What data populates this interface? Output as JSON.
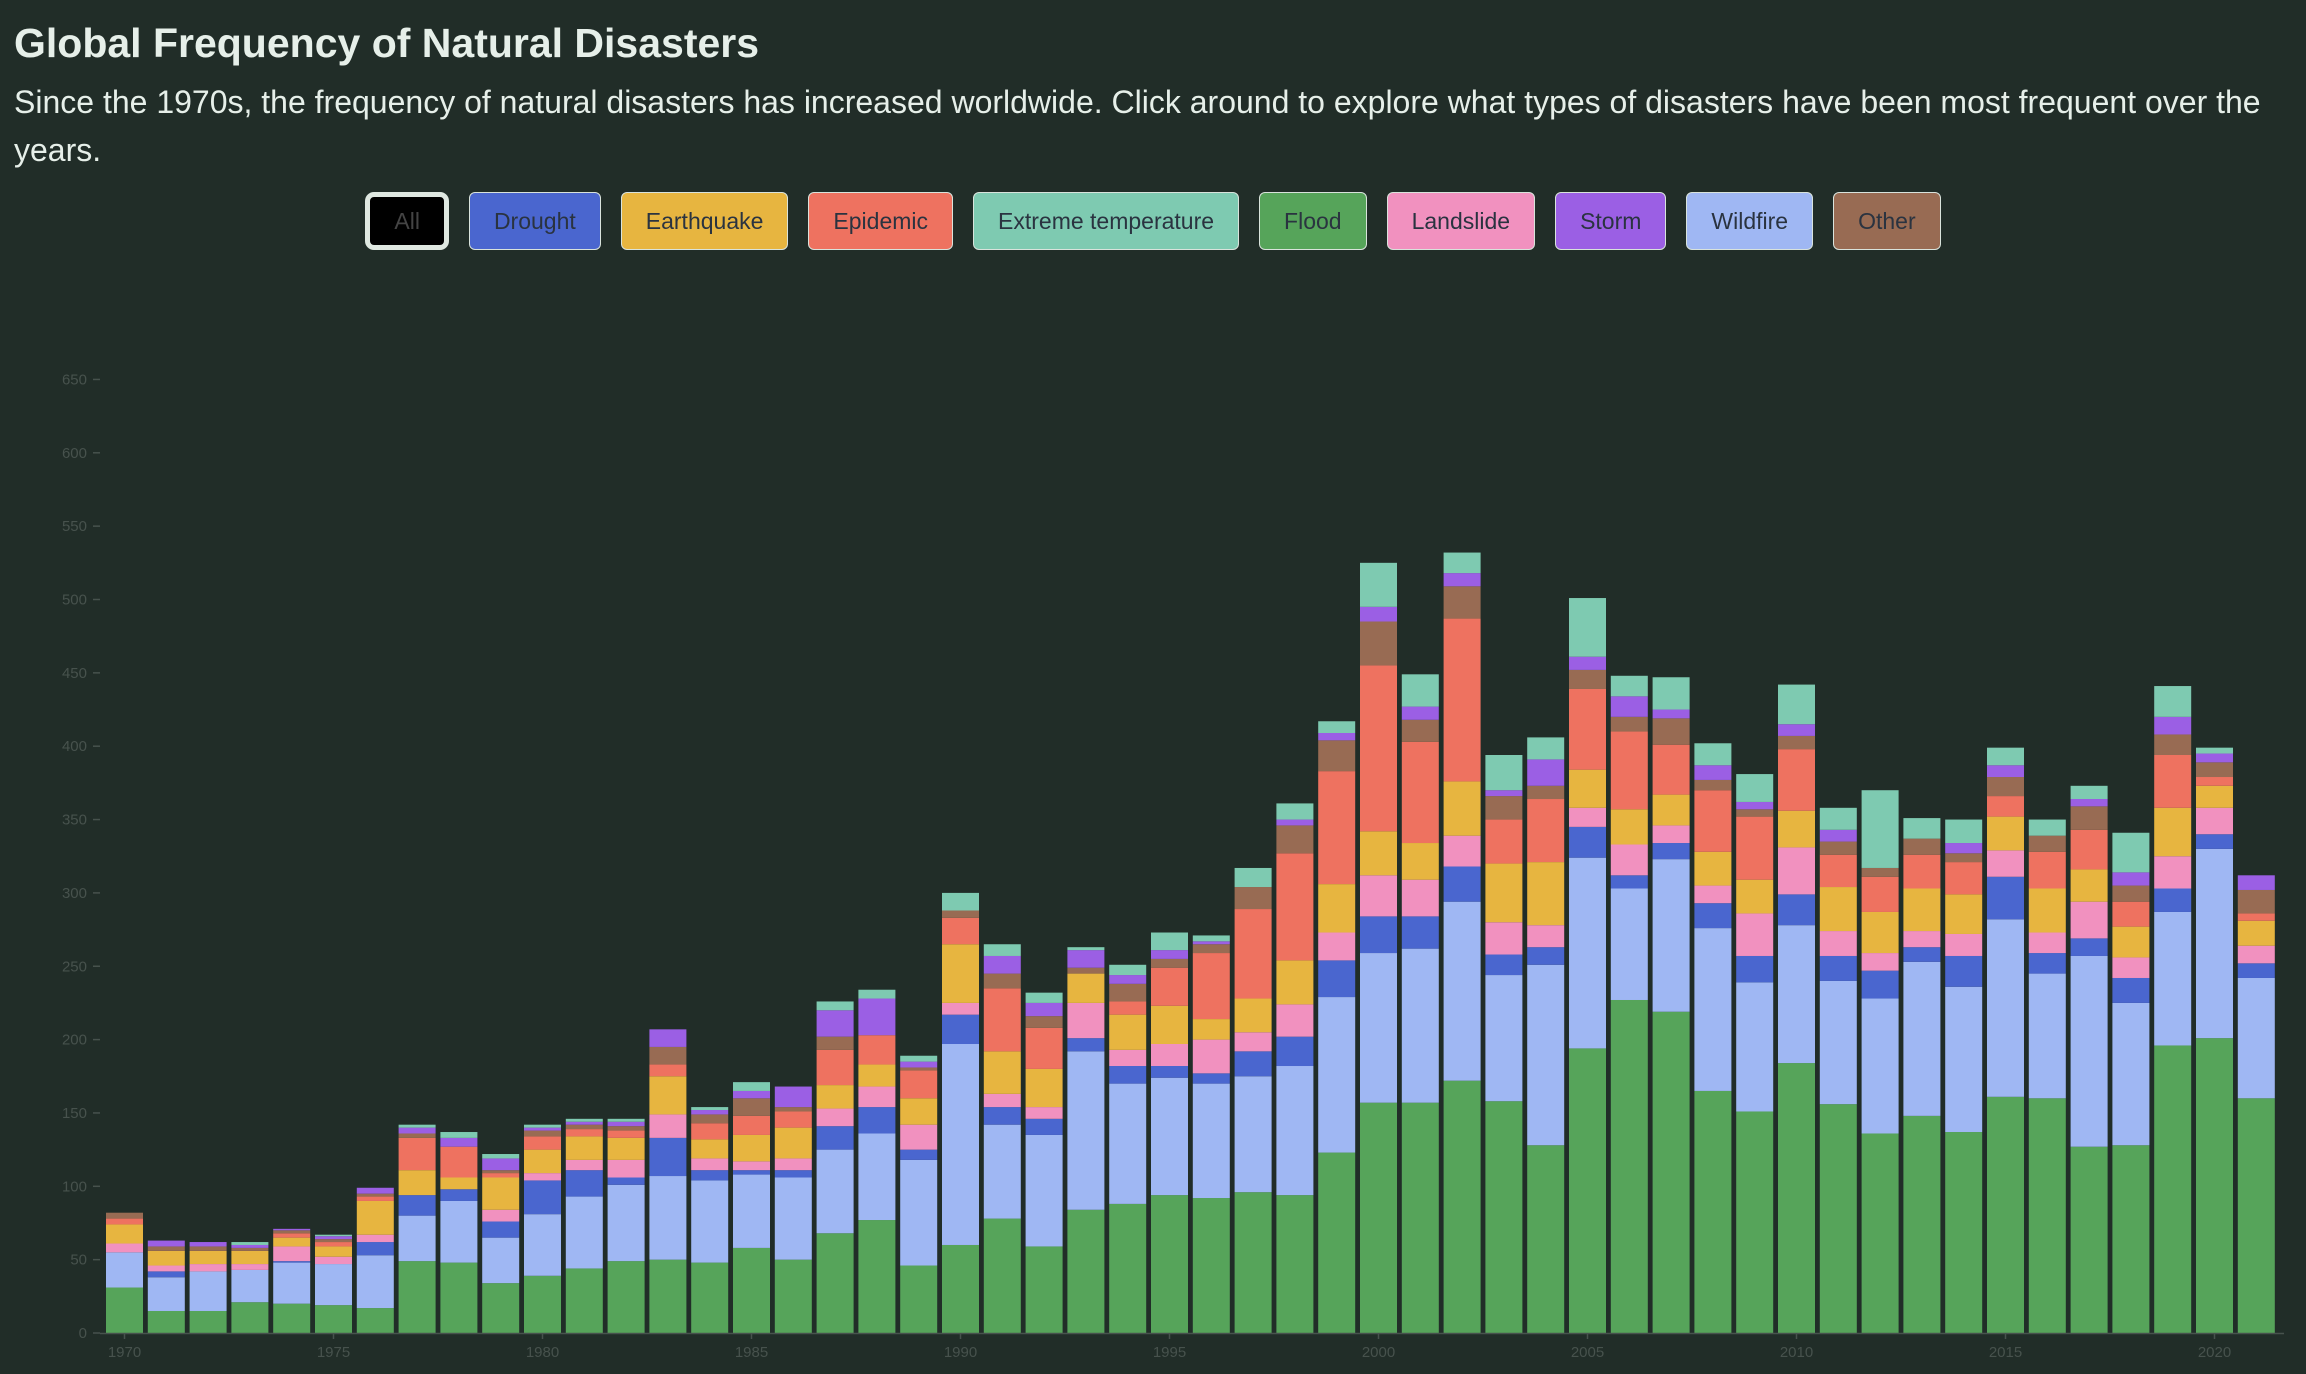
{
  "title": "Global Frequency of Natural Disasters",
  "subtitle": "Since the 1970s, the frequency of natural disasters has increased worldwide. Click around to explore what types of disasters have been most frequent over the years.",
  "filters": [
    {
      "label": "All",
      "color": "#000000",
      "active": true
    },
    {
      "label": "Drought",
      "color": "#4a66cf"
    },
    {
      "label": "Earthquake",
      "color": "#e7b540"
    },
    {
      "label": "Epidemic",
      "color": "#ee7260"
    },
    {
      "label": "Extreme temperature",
      "color": "#7ecab1"
    },
    {
      "label": "Flood",
      "color": "#56a45a"
    },
    {
      "label": "Landslide",
      "color": "#f191bf"
    },
    {
      "label": "Storm",
      "color": "#9b5fe4"
    },
    {
      "label": "Wildfire",
      "color": "#9fb7f3"
    },
    {
      "label": "Other",
      "color": "#986b53"
    }
  ],
  "chart_data": {
    "type": "bar",
    "stacked": true,
    "grid": false,
    "ylim": [
      0,
      650
    ],
    "yticks": [
      0,
      50,
      100,
      150,
      200,
      250,
      300,
      350,
      400,
      450,
      500,
      550,
      600,
      650
    ],
    "xticks": [
      1970,
      1975,
      1980,
      1985,
      1990,
      1995,
      2000,
      2005,
      2010,
      2015,
      2020
    ],
    "categories": [
      1970,
      1971,
      1972,
      1973,
      1974,
      1975,
      1976,
      1977,
      1978,
      1979,
      1980,
      1981,
      1982,
      1983,
      1984,
      1985,
      1986,
      1987,
      1988,
      1989,
      1990,
      1991,
      1992,
      1993,
      1994,
      1995,
      1996,
      1997,
      1998,
      1999,
      2000,
      2001,
      2002,
      2003,
      2004,
      2005,
      2006,
      2007,
      2008,
      2009,
      2010,
      2011,
      2012,
      2013,
      2014,
      2015,
      2016,
      2017,
      2018,
      2019,
      2020,
      2021
    ],
    "series": [
      {
        "name": "Flood",
        "color": "#56a45a",
        "values": [
          31,
          15,
          15,
          21,
          20,
          19,
          17,
          49,
          48,
          34,
          39,
          44,
          49,
          50,
          48,
          58,
          50,
          68,
          77,
          46,
          60,
          78,
          59,
          84,
          88,
          94,
          92,
          96,
          94,
          123,
          157,
          157,
          172,
          158,
          128,
          194,
          227,
          219,
          165,
          151,
          184,
          156,
          136,
          148,
          137,
          161,
          160,
          127,
          128,
          196,
          201,
          160
        ]
      },
      {
        "name": "Wildfire",
        "color": "#9fb7f3",
        "values": [
          24,
          23,
          27,
          22,
          28,
          28,
          36,
          31,
          42,
          31,
          42,
          49,
          52,
          57,
          56,
          50,
          56,
          57,
          59,
          72,
          137,
          64,
          76,
          108,
          82,
          80,
          78,
          79,
          88,
          106,
          102,
          105,
          122,
          86,
          123,
          130,
          76,
          104,
          111,
          88,
          94,
          84,
          92,
          105,
          99,
          121,
          85,
          130,
          97,
          91,
          129,
          82
        ]
      },
      {
        "name": "Drought",
        "color": "#4a66cf",
        "values": [
          0,
          4,
          0,
          0,
          1,
          0,
          9,
          14,
          8,
          11,
          23,
          18,
          5,
          26,
          7,
          3,
          5,
          16,
          18,
          7,
          20,
          12,
          11,
          9,
          12,
          8,
          7,
          17,
          20,
          25,
          25,
          22,
          24,
          14,
          12,
          21,
          9,
          11,
          17,
          18,
          21,
          17,
          19,
          10,
          21,
          29,
          14,
          12,
          17,
          16,
          10,
          10
        ]
      },
      {
        "name": "Landslide",
        "color": "#f191bf",
        "values": [
          6,
          4,
          5,
          4,
          10,
          5,
          5,
          0,
          0,
          8,
          5,
          7,
          12,
          16,
          8,
          6,
          8,
          12,
          14,
          17,
          8,
          9,
          8,
          24,
          11,
          15,
          23,
          13,
          22,
          19,
          28,
          25,
          21,
          22,
          15,
          13,
          21,
          12,
          12,
          29,
          32,
          17,
          12,
          11,
          15,
          18,
          14,
          25,
          14,
          22,
          18,
          12
        ]
      },
      {
        "name": "Earthquake",
        "color": "#e7b540",
        "values": [
          13,
          10,
          9,
          9,
          6,
          7,
          23,
          17,
          8,
          22,
          16,
          16,
          15,
          26,
          13,
          18,
          21,
          16,
          15,
          18,
          40,
          29,
          26,
          20,
          24,
          26,
          14,
          23,
          30,
          33,
          30,
          25,
          37,
          40,
          43,
          26,
          24,
          21,
          23,
          23,
          25,
          30,
          28,
          29,
          27,
          23,
          30,
          22,
          21,
          33,
          15,
          17
        ]
      },
      {
        "name": "Epidemic",
        "color": "#ee7260",
        "values": [
          4,
          0,
          0,
          0,
          3,
          3,
          3,
          22,
          21,
          3,
          9,
          5,
          5,
          8,
          11,
          13,
          11,
          24,
          20,
          19,
          18,
          43,
          28,
          0,
          9,
          26,
          45,
          61,
          73,
          77,
          113,
          69,
          111,
          30,
          43,
          55,
          53,
          34,
          42,
          43,
          42,
          22,
          24,
          23,
          22,
          14,
          25,
          27,
          17,
          36,
          6,
          5
        ]
      },
      {
        "name": "Other",
        "color": "#986b53",
        "values": [
          4,
          3,
          3,
          2,
          2,
          2,
          2,
          3,
          0,
          2,
          4,
          3,
          3,
          12,
          6,
          12,
          3,
          9,
          0,
          2,
          5,
          10,
          8,
          4,
          12,
          6,
          6,
          15,
          19,
          21,
          30,
          15,
          22,
          16,
          9,
          13,
          10,
          18,
          7,
          5,
          9,
          9,
          6,
          11,
          6,
          13,
          11,
          16,
          11,
          14,
          10,
          16
        ]
      },
      {
        "name": "Storm",
        "color": "#9b5fe4",
        "values": [
          0,
          4,
          3,
          2,
          1,
          2,
          4,
          4,
          6,
          8,
          2,
          2,
          3,
          12,
          3,
          5,
          14,
          18,
          25,
          4,
          0,
          12,
          9,
          12,
          6,
          6,
          2,
          0,
          4,
          5,
          10,
          9,
          9,
          4,
          18,
          9,
          14,
          6,
          10,
          5,
          8,
          8,
          0,
          0,
          7,
          8,
          0,
          5,
          9,
          12,
          6,
          10
        ]
      },
      {
        "name": "Extreme temperature",
        "color": "#7ecab1",
        "values": [
          0,
          0,
          0,
          2,
          0,
          1,
          0,
          2,
          4,
          3,
          2,
          2,
          2,
          0,
          2,
          6,
          0,
          6,
          6,
          4,
          12,
          8,
          7,
          2,
          7,
          12,
          4,
          13,
          11,
          8,
          30,
          22,
          14,
          24,
          15,
          40,
          14,
          22,
          15,
          19,
          27,
          15,
          53,
          14,
          16,
          12,
          11,
          9,
          27,
          21,
          4,
          0
        ]
      }
    ]
  }
}
